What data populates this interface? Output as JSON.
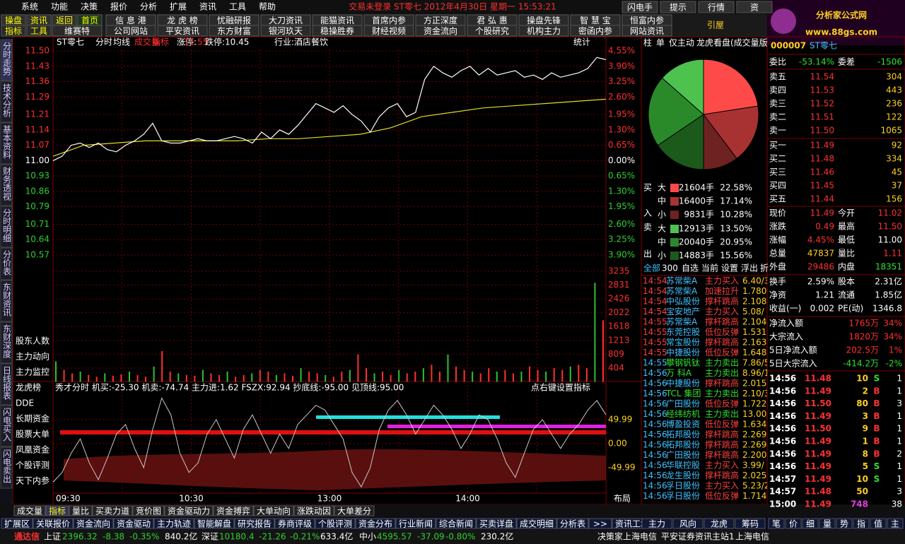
{
  "menu": [
    "系统",
    "功能",
    "决策",
    "报价",
    "分析",
    "扩展",
    "资讯",
    "工具",
    "帮助"
  ],
  "title_bar": "交易未登录  ST零七  2012年4月30日  星期一  15:53:21",
  "top_buttons": [
    "闪电手",
    "提示",
    "行情",
    "资"
  ],
  "logo": {
    "title": "分析家公式网",
    "url": "www.88gs.com"
  },
  "toolbar": {
    "left1": [
      "操盘",
      "资讯",
      "返回",
      "首页"
    ],
    "left2": [
      "指标",
      "工具",
      "维赛特"
    ],
    "row1": [
      "信 息 港",
      "龙 虎 榜",
      "忧融研报",
      "大刀资讯",
      "能猫资讯",
      "首席内参",
      "方正深度",
      "君 弘 惠",
      "操盘先锋",
      "智 慧 宝",
      "恒富内参"
    ],
    "row2": [
      "公司网站",
      "平安资讯",
      "东方财富",
      "银河玖天",
      "稳操胜券",
      "财经视频",
      "资金流向",
      "个股研究",
      "机构主力",
      "密函内参",
      "网站资讯"
    ],
    "extra": "引屋"
  },
  "side_tabs": [
    "分时走势",
    "技术分析",
    "基本资料",
    "财务透视",
    "分时明细",
    "分价表",
    "东财资讯",
    "东财深度",
    "日线报表",
    "闪电买入",
    "闪电卖出"
  ],
  "chart": {
    "header": [
      "ST零七",
      "分时",
      "均线",
      "成交量",
      "指标",
      "涨停:",
      "11.55",
      "跌停:10.45",
      "行业:酒店餐饮"
    ],
    "stat": "统计",
    "ylim": [
      10.57,
      11.5
    ],
    "price_ticks": [
      {
        "value": 11.5,
        "label": "11.50"
      },
      {
        "value": 11.43,
        "label": "11.43"
      },
      {
        "value": 11.36,
        "label": "11.36"
      },
      {
        "value": 11.29,
        "label": "11.29"
      },
      {
        "value": 11.21,
        "label": "11.21"
      },
      {
        "value": 11.14,
        "label": "11.14"
      },
      {
        "value": 11.07,
        "label": "11.07"
      },
      {
        "value": 11,
        "label": "11.00"
      },
      {
        "value": 10.93,
        "label": "10.93"
      },
      {
        "value": 10.86,
        "label": "10.86"
      },
      {
        "value": 10.79,
        "label": "10.79"
      },
      {
        "value": 10.71,
        "label": "10.71"
      },
      {
        "value": 10.64,
        "label": "10.64"
      },
      {
        "value": 10.57,
        "label": "10.57"
      }
    ],
    "pct_ticks": [
      "4.55%",
      "3.90%",
      "3.25%",
      "2.60%",
      "1.95%",
      "1.30%",
      "0.65%",
      "0.00%",
      "0.65%",
      "1.30%",
      "1.95%",
      "2.60%",
      "3.25%",
      "3.90%"
    ],
    "price": [
      11.0,
      11.02,
      11.07,
      11.08,
      11.06,
      11.08,
      11.05,
      11.04,
      11.07,
      11.09,
      11.12,
      11.17,
      11.09,
      11.08,
      11.08,
      11.09,
      11.1,
      11.09,
      11.09,
      11.1,
      11.11,
      11.1,
      11.08,
      11.13,
      11.1,
      11.14,
      11.12,
      11.16,
      11.21,
      11.26,
      11.24,
      11.22,
      11.25,
      11.21,
      11.18,
      11.13,
      11.2,
      11.24,
      11.26,
      11.2,
      11.22,
      11.37,
      11.43,
      11.4,
      11.38,
      11.41,
      11.43,
      11.39,
      11.42,
      11.39,
      11.4,
      11.41,
      11.38,
      11.39,
      11.37,
      11.4,
      11.38,
      11.39,
      11.4,
      11.42,
      11.47,
      11.46
    ],
    "avg": [
      11.02,
      11.07,
      11.08,
      11.09,
      11.09,
      11.09,
      11.09,
      11.1,
      11.1,
      11.11,
      11.12,
      11.15,
      11.2,
      11.22,
      11.24,
      11.25,
      11.26,
      11.27,
      11.28
    ],
    "vol_ticks": [
      3235,
      2831,
      2426,
      2022,
      1618,
      1213,
      809,
      404
    ],
    "volume": [
      600,
      350,
      250,
      300,
      200,
      150,
      250,
      180,
      220,
      300,
      200,
      150,
      450,
      900,
      300,
      250,
      200,
      180,
      350,
      250,
      200,
      300,
      150,
      200,
      250,
      350,
      300,
      200,
      250,
      180,
      400,
      300,
      250,
      200,
      150,
      300,
      350,
      800,
      400,
      250,
      300,
      200,
      350,
      250,
      300,
      400,
      500,
      300,
      800,
      450,
      350,
      300,
      250,
      400,
      300,
      350,
      250,
      300,
      450,
      350,
      300,
      400,
      350,
      450,
      500,
      400,
      2900,
      1800
    ],
    "left_labels": [
      "股东人数",
      "主力动向",
      "主力监控",
      "龙虎榜",
      "DDE",
      "长期资金",
      "股票大单",
      "凤凰资金",
      "个股评测",
      "天下内参"
    ],
    "ind_header": "秀才分时  机买:-25.30  机卖:-74.74  主力进:1.62  FSZX:92.94  抄底线:-95.00  见顶线:95.00",
    "ind_hint": "点右键设置指标",
    "ind_ticks": [
      {
        "value": 49.99,
        "label": "49.99"
      },
      {
        "value": 0,
        "label": "0.00"
      },
      {
        "value": -49.99,
        "label": "-49.99"
      }
    ],
    "indicator": [
      -80,
      -60,
      -20,
      10,
      -40,
      -75,
      -30,
      20,
      40,
      -10,
      -50,
      30,
      95,
      60,
      -20,
      -60,
      -40,
      20,
      50,
      10,
      -30,
      30,
      60,
      20,
      -20,
      20,
      -10,
      40,
      60,
      80,
      70,
      40,
      10,
      -60,
      -90,
      -50,
      30,
      70,
      90,
      60,
      20,
      50,
      80,
      60,
      30,
      -10,
      20,
      60,
      50,
      10,
      -40,
      -70,
      -20,
      30,
      50,
      20,
      -10,
      20,
      40,
      70,
      90,
      60
    ],
    "times": [
      "09:30",
      "10:30",
      "13:00",
      "14:00"
    ],
    "layout": "布局"
  },
  "bottom_tabs": [
    "成交量",
    "指标",
    "量比",
    "买卖力道",
    "竞价图",
    "资金驱动力",
    "资金搏弈",
    "大单动向",
    "涨跌动因",
    "大单差分"
  ],
  "bottom_row": [
    "扩展区",
    "关联报价",
    "资金流向",
    "资金驱动",
    "主力轨迹",
    "智能解盘",
    "研究报告",
    "券商评级",
    "个股评测",
    "资金分布",
    "行业新闻",
    "综合新闻",
    "买卖详盘",
    "成交明细",
    "分析表",
    ">>",
    "资讯工场"
  ],
  "bottom_mid": [
    "主力",
    "风向",
    "龙虎",
    "筹码"
  ],
  "bottom_right": [
    "笔",
    "价",
    "细",
    "量",
    "势",
    "指",
    "值",
    "主"
  ],
  "status": [
    "通达信",
    "上证",
    "2396.32",
    "-8.38",
    "-0.35%",
    "840.2亿",
    "深证",
    "10180.4",
    "-21.26",
    "-0.21%",
    "633.4亿",
    "中小",
    "4595.57",
    "-37.09",
    "-0.80%",
    "230.2亿",
    "决策家上海电信",
    "平安证券资讯主站1",
    "上海电信"
  ],
  "pie_panel": {
    "tabs": [
      "柱",
      "单",
      "仅主动",
      "龙虎看盘(成交量版"
    ],
    "side": [
      "买",
      "入",
      "卖",
      "出"
    ],
    "rows": [
      {
        "size": "大",
        "vol": "21604手",
        "share": 22.58,
        "label": "22.58%",
        "color": "#ff4a4a"
      },
      {
        "size": "中",
        "vol": "16400手",
        "share": 17.14,
        "label": "17.14%",
        "color": "#a83232"
      },
      {
        "size": "小",
        "vol": "9831手",
        "share": 10.28,
        "label": "10.28%",
        "color": "#6e2222"
      },
      {
        "size": "大",
        "vol": "12913手",
        "share": 13.5,
        "label": "13.50%",
        "color": "#4ec24e"
      },
      {
        "size": "中",
        "vol": "20040手",
        "share": 20.95,
        "label": "20.95%",
        "color": "#2a8a2a"
      },
      {
        "size": "小",
        "vol": "14883手",
        "share": 15.56,
        "label": "15.56%",
        "color": "#1c5a1c"
      }
    ]
  },
  "list": {
    "tabs": [
      "全部",
      "300",
      "自选",
      "当前",
      "设置",
      "浮出",
      "折"
    ],
    "rows": [
      [
        "14:54",
        "苏常柴A",
        "主力买入",
        "6.40/3"
      ],
      [
        "14:54",
        "苏常柴A",
        "加速拉升",
        "1.780"
      ],
      [
        "14:54",
        "中弘股份",
        "撑杆跳高",
        "2.108"
      ],
      [
        "14:54",
        "宝安地产",
        "主力买入",
        "5.08/"
      ],
      [
        "14:55",
        "苏常柴A",
        "撑杆跳高",
        "2.104"
      ],
      [
        "14:55",
        "东莞控股",
        "低位反弹",
        "1.531"
      ],
      [
        "14:55",
        "常宝股份",
        "撑杆跳高",
        "2.163"
      ],
      [
        "14:55",
        "中捷股份",
        "低位反弹",
        "1.648"
      ],
      [
        "14:55",
        "攀钢钒钛",
        "主力卖出",
        "7.86/5"
      ],
      [
        "14:56",
        "万 科A",
        "主力卖出",
        "8.96/1"
      ],
      [
        "14:56",
        "中捷股份",
        "撑杆跳高",
        "2.015"
      ],
      [
        "14:56",
        "TCL 集团",
        "主力卖出",
        "2.10/3"
      ],
      [
        "14:56",
        "广田股份",
        "低位反弹",
        "1.722"
      ],
      [
        "14:56",
        "经纬纺机",
        "主力卖出",
        "13.00/"
      ],
      [
        "14:56",
        "博盈投资",
        "低位反弹",
        "1.634"
      ],
      [
        "14:56",
        "拓邦股份",
        "撑杆跳高",
        "2.269"
      ],
      [
        "14:56",
        "拓邦股份",
        "撑杆跳高",
        "2.269"
      ],
      [
        "14:56",
        "广田股份",
        "撑杆跳高",
        "2.200"
      ],
      [
        "14:56",
        "华联控股",
        "主力买入",
        "3.99/"
      ],
      [
        "14:56",
        "龙生股份",
        "撑杆跳高",
        "2.025"
      ],
      [
        "14:56",
        "孚日股份",
        "主力买入",
        "5.23/2"
      ],
      [
        "14:56",
        "孚日股份",
        "低位反弹",
        "1.714"
      ]
    ]
  },
  "quote": {
    "code": "000007",
    "name": "ST零七",
    "wb": [
      "委比",
      "-53.14%",
      "委差",
      "-1506"
    ],
    "book": [
      [
        "卖五",
        "11.54",
        "304"
      ],
      [
        "卖四",
        "11.53",
        "443"
      ],
      [
        "卖三",
        "11.52",
        "236"
      ],
      [
        "卖二",
        "11.51",
        "122"
      ],
      [
        "卖一",
        "11.50",
        "1065"
      ],
      [
        "买一",
        "11.49",
        "92"
      ],
      [
        "买二",
        "11.48",
        "334"
      ],
      [
        "买三",
        "11.46",
        "45"
      ],
      [
        "买四",
        "11.45",
        "37"
      ],
      [
        "买五",
        "11.44",
        "156"
      ]
    ],
    "stats": [
      [
        "现价",
        "11.49",
        "今开",
        "11.02"
      ],
      [
        "涨跌",
        "0.49",
        "最高",
        "11.50"
      ],
      [
        "涨幅",
        "4.45%",
        "最低",
        "11.00"
      ],
      [
        "总量",
        "47837",
        "量比",
        "1.11"
      ],
      [
        "外盘",
        "29486",
        "内盘",
        "18351"
      ],
      [
        "换手",
        "2.59%",
        "股本",
        "2.31亿"
      ],
      [
        "净资",
        "1.21",
        "流通",
        "1.85亿"
      ],
      [
        "收益(一)",
        "0.002",
        "PE(动)",
        "1346.8"
      ]
    ],
    "flows": [
      [
        "净流入额",
        "1765万",
        "34%"
      ],
      [
        "大宗流入",
        "1820万",
        "34%"
      ],
      [
        "5日净流入额",
        "202.5万",
        "1%"
      ],
      [
        "5日大宗流入",
        "-414.2万",
        "-2%"
      ]
    ],
    "ticks": [
      [
        "14:56",
        "11.48",
        "10",
        "S",
        "1"
      ],
      [
        "14:56",
        "11.49",
        "2",
        "B",
        "1"
      ],
      [
        "14:56",
        "11.50",
        "80",
        "B",
        "3"
      ],
      [
        "14:56",
        "11.49",
        "3",
        "B",
        "1"
      ],
      [
        "14:56",
        "11.50",
        "9",
        "B",
        "1"
      ],
      [
        "14:56",
        "11.49",
        "1",
        "B",
        "1"
      ],
      [
        "14:56",
        "11.49",
        "8",
        "B",
        "2"
      ],
      [
        "14:56",
        "11.49",
        "5",
        "S",
        "1"
      ],
      [
        "14:57",
        "11.49",
        "10",
        "S",
        "1"
      ],
      [
        "14:57",
        "11.48",
        "50",
        "",
        "3"
      ],
      [
        "15:00",
        "11.49",
        "748",
        "",
        "38"
      ]
    ]
  }
}
